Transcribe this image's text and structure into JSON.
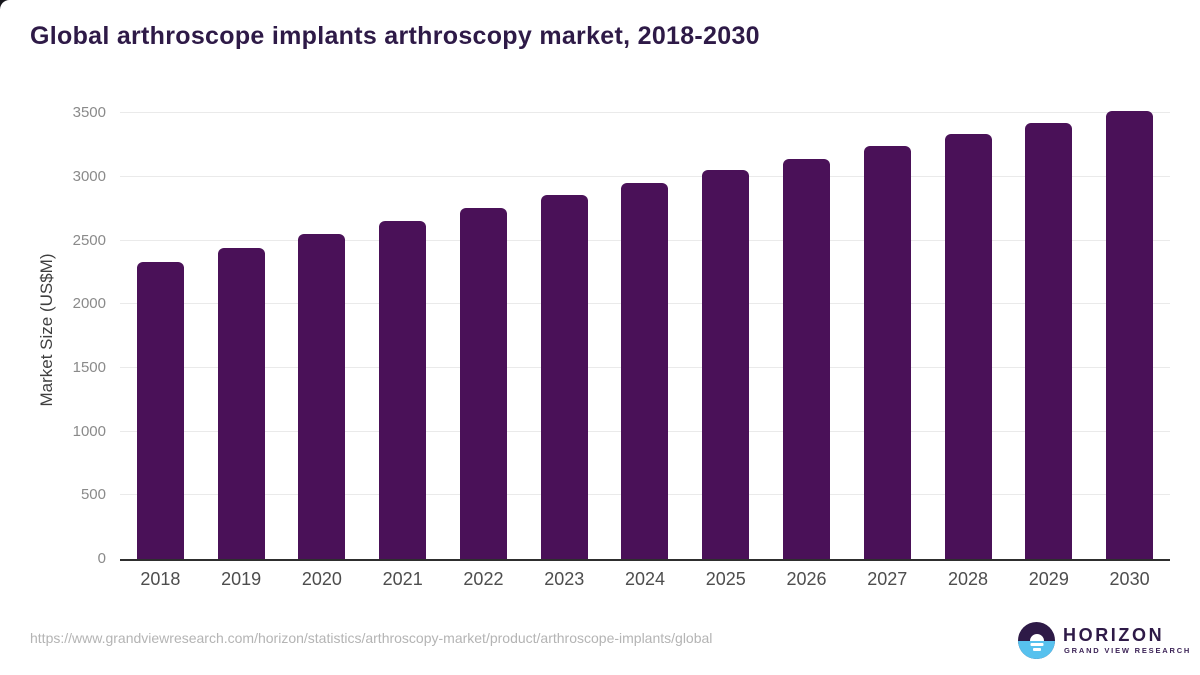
{
  "page": {
    "title": "Global arthroscope implants arthroscopy market, 2018-2030",
    "source_url": "https://www.grandviewresearch.com/horizon/statistics/arthroscopy-market/product/arthroscope-implants/global"
  },
  "chart_data": {
    "type": "bar",
    "title": "Global arthroscope implants arthroscopy market, 2018-2030",
    "categories": [
      "2018",
      "2019",
      "2020",
      "2021",
      "2022",
      "2023",
      "2024",
      "2025",
      "2026",
      "2027",
      "2028",
      "2029",
      "2030"
    ],
    "values": [
      2335,
      2445,
      2550,
      2655,
      2755,
      2855,
      2950,
      3050,
      3140,
      3240,
      3335,
      3425,
      3520
    ],
    "xlabel": "",
    "ylabel": "Market Size (US$M)",
    "ylim": [
      0,
      3500
    ],
    "yticks": [
      0,
      500,
      1000,
      1500,
      2000,
      2500,
      3000,
      3500
    ],
    "grid": true,
    "legend": false,
    "bar_color": "#4a1158"
  },
  "logo": {
    "name": "HORIZON",
    "subtitle": "GRAND VIEW RESEARCH",
    "circle_top_color": "#2e1a47",
    "circle_bottom_color": "#57c1ee"
  },
  "colors": {
    "title": "#2e1a47",
    "bar": "#4a1158",
    "y_tick_label": "#8a8a8a",
    "x_tick_label": "#4d4d4d",
    "axis_line": "#2e2e2e",
    "gridline": "#eaeaea",
    "source_url": "#b4b4b4",
    "background": "#ffffff"
  }
}
